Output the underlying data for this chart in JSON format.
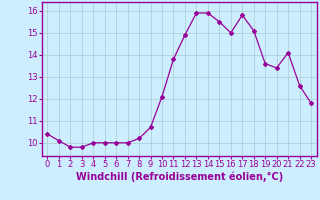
{
  "x": [
    0,
    1,
    2,
    3,
    4,
    5,
    6,
    7,
    8,
    9,
    10,
    11,
    12,
    13,
    14,
    15,
    16,
    17,
    18,
    19,
    20,
    21,
    22,
    23
  ],
  "y": [
    10.4,
    10.1,
    9.8,
    9.8,
    10.0,
    10.0,
    10.0,
    10.0,
    10.2,
    10.7,
    12.1,
    13.8,
    14.9,
    15.9,
    15.9,
    15.5,
    15.0,
    15.8,
    15.1,
    13.6,
    13.4,
    14.1,
    12.6,
    11.8
  ],
  "line_color": "#990099",
  "marker": "D",
  "marker_size": 2.0,
  "line_width": 0.9,
  "xlabel": "Windchill (Refroidissement éolien,°C)",
  "xlabel_fontsize": 7,
  "tick_fontsize": 6,
  "ylim": [
    9.4,
    16.4
  ],
  "xlim": [
    -0.5,
    23.5
  ],
  "bg_color": "#cceeff",
  "grid_color": "#aacccc",
  "spine_color": "#990099",
  "yticks": [
    10,
    11,
    12,
    13,
    14,
    15,
    16
  ]
}
